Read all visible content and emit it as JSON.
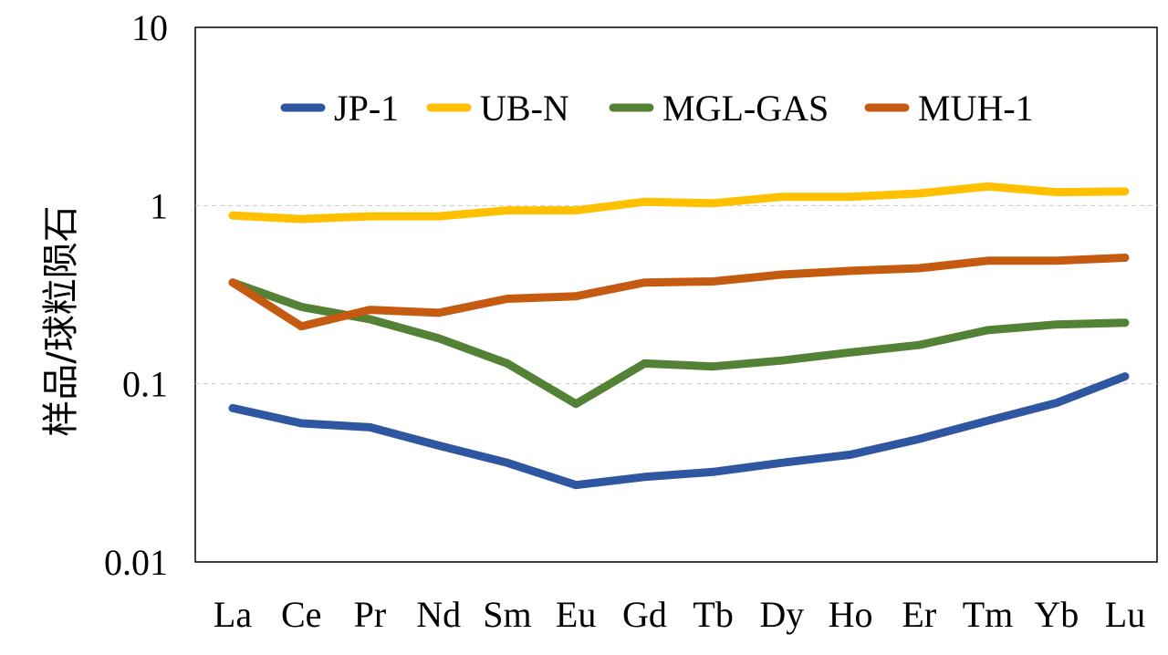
{
  "chart_data": {
    "type": "line",
    "title": "",
    "xlabel": "",
    "ylabel": "样品/球粒陨石",
    "y_scale": "log",
    "ylim": [
      0.01,
      10
    ],
    "y_ticks": [
      "0.01",
      "0.1",
      "1",
      "10"
    ],
    "gridlines": "dashed at 0.1 and 1",
    "legend_position": "top-inside",
    "categories": [
      "La",
      "Ce",
      "Pr",
      "Nd",
      "Sm",
      "Eu",
      "Gd",
      "Tb",
      "Dy",
      "Ho",
      "Er",
      "Tm",
      "Yb",
      "Lu"
    ],
    "series": [
      {
        "name": "JP-1",
        "color": "#2F56A0",
        "values": [
          0.073,
          0.06,
          0.057,
          0.045,
          0.036,
          0.027,
          0.03,
          0.032,
          0.036,
          0.04,
          0.049,
          0.062,
          0.078,
          0.11
        ]
      },
      {
        "name": "UB-N",
        "color": "#FFC000",
        "values": [
          0.88,
          0.84,
          0.87,
          0.87,
          0.94,
          0.94,
          1.05,
          1.03,
          1.12,
          1.12,
          1.17,
          1.28,
          1.19,
          1.2
        ]
      },
      {
        "name": "MGL-GAS",
        "color": "#538135",
        "values": [
          0.37,
          0.27,
          0.23,
          0.18,
          0.13,
          0.077,
          0.13,
          0.125,
          0.135,
          0.15,
          0.165,
          0.2,
          0.215,
          0.22
        ]
      },
      {
        "name": "MUH-1",
        "color": "#C55A11",
        "values": [
          0.37,
          0.21,
          0.26,
          0.25,
          0.3,
          0.31,
          0.37,
          0.375,
          0.41,
          0.43,
          0.445,
          0.49,
          0.49,
          0.51
        ]
      }
    ]
  }
}
